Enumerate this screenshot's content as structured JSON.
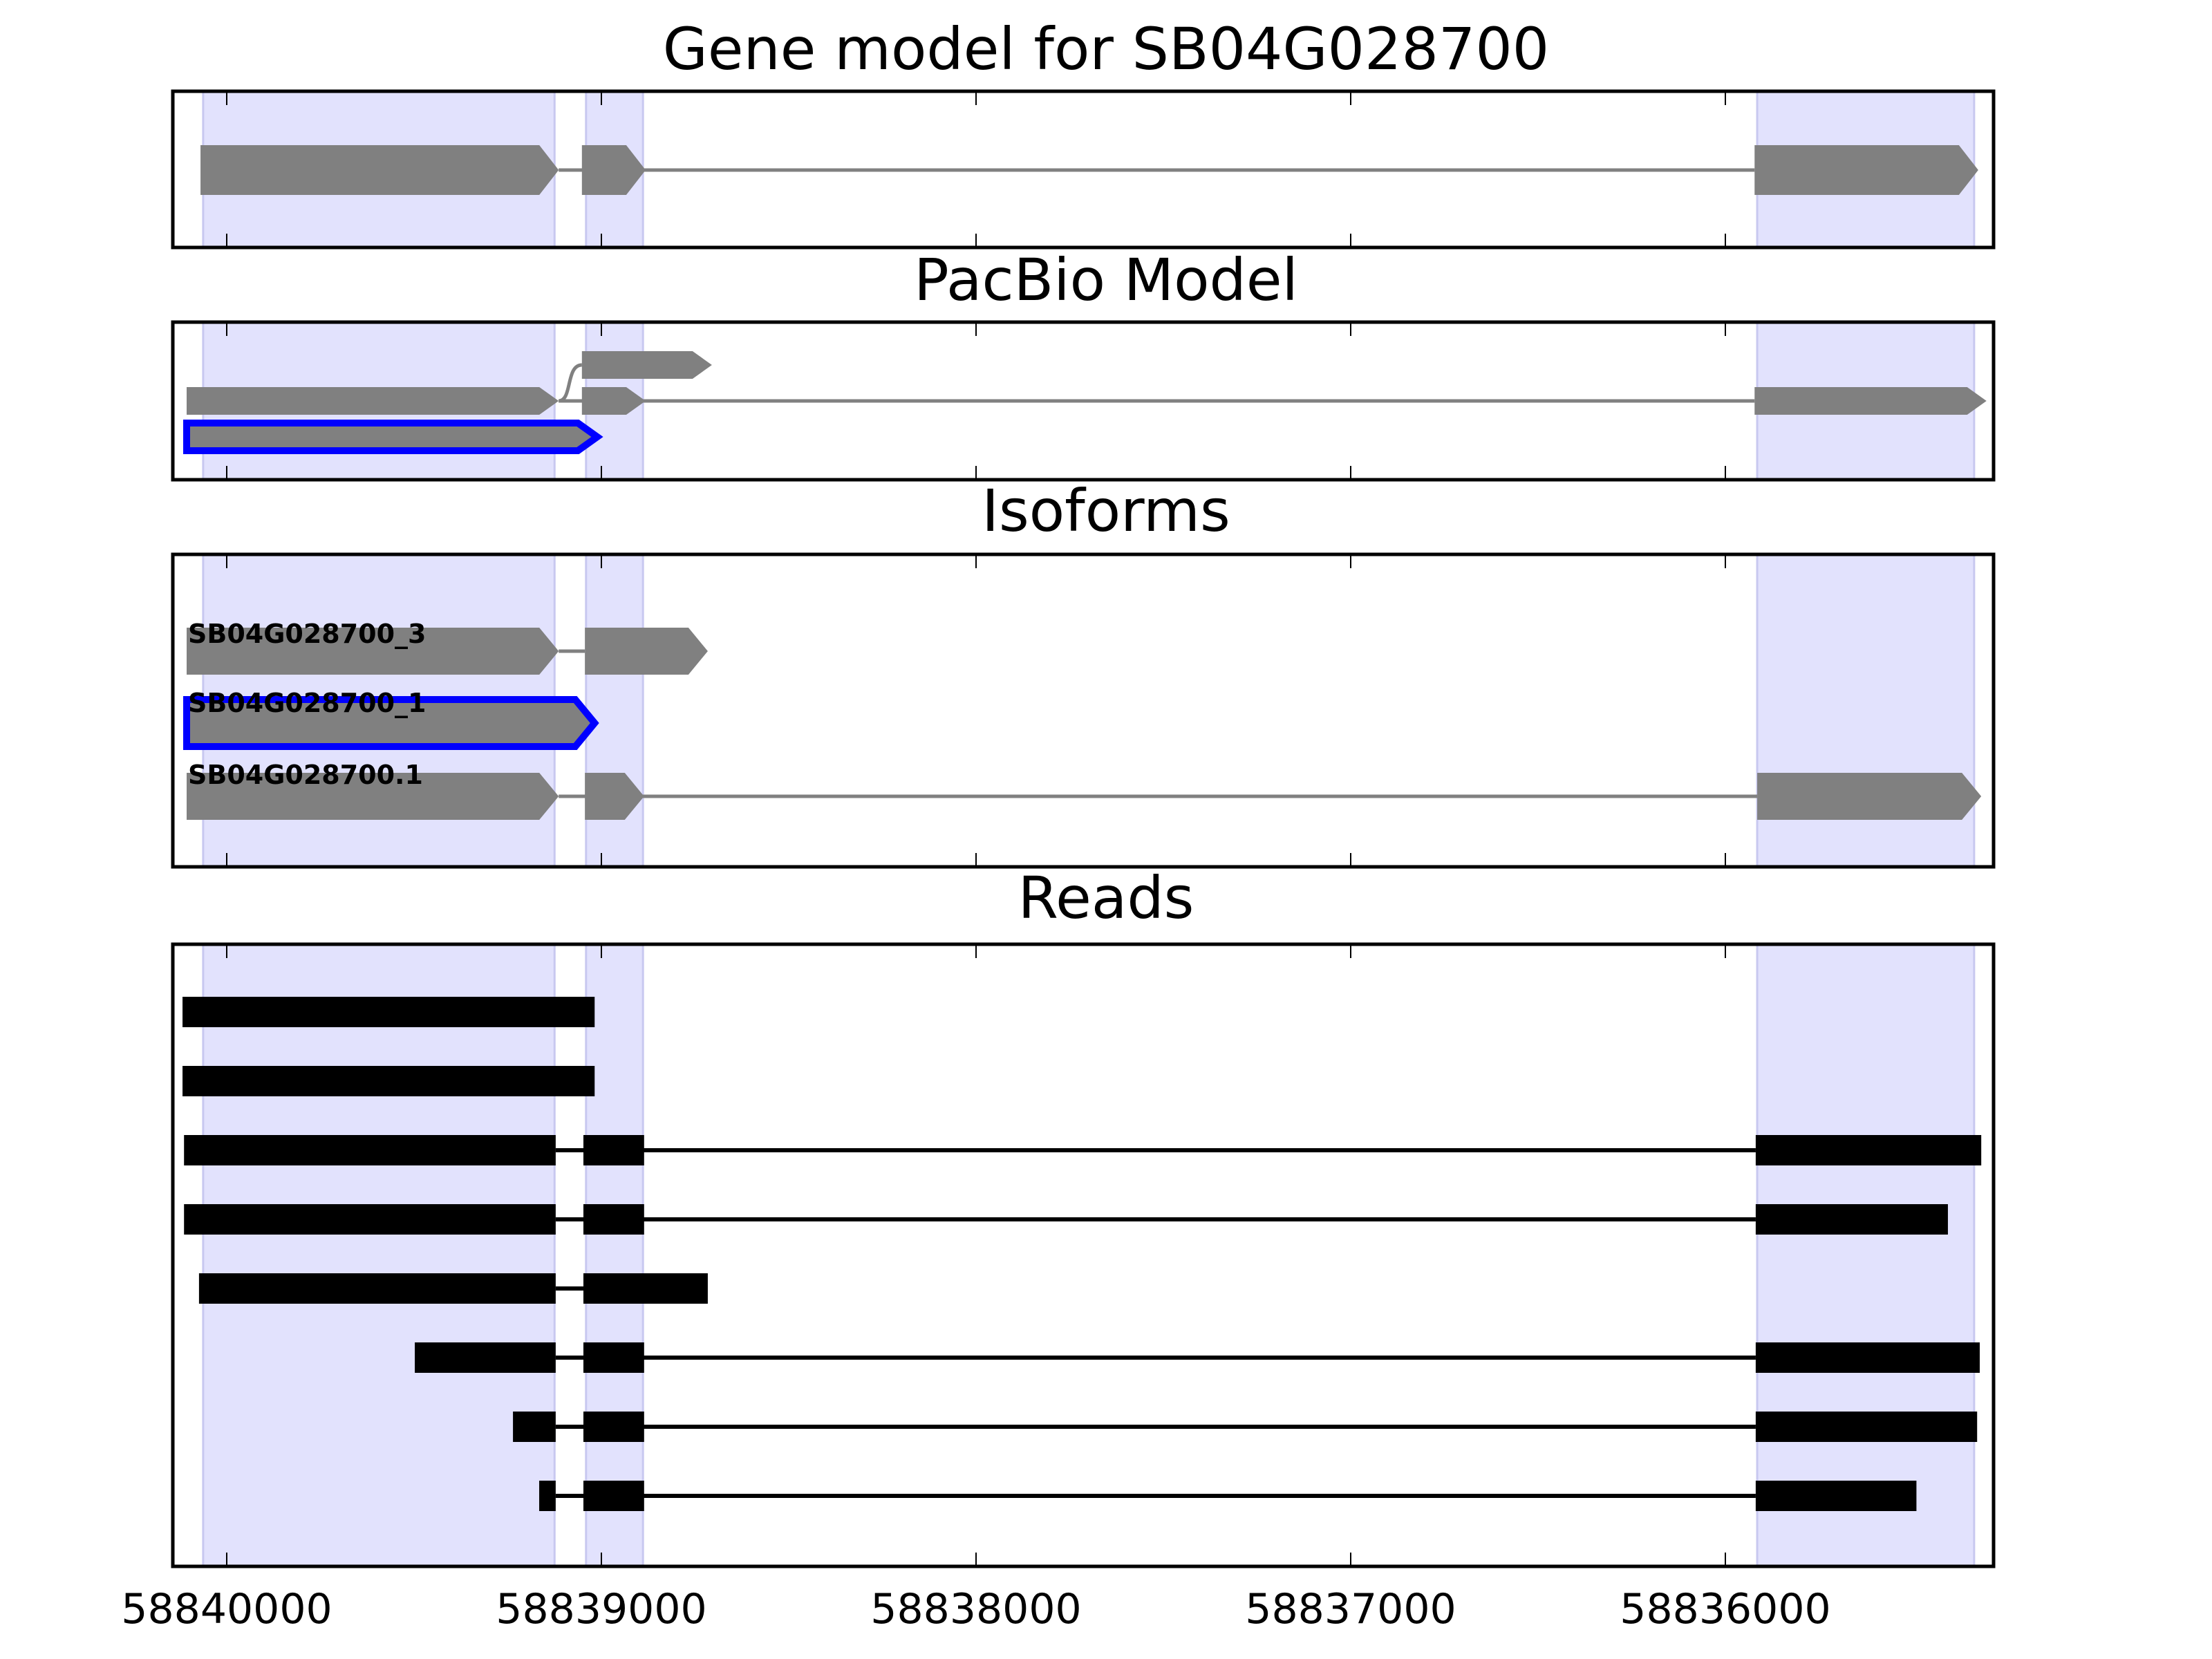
{
  "chart_data": {
    "type": "gene-track",
    "xlim": [
      58840144,
      58835284
    ],
    "x_ticks": [
      58840000,
      58839000,
      58838000,
      58837000,
      58836000
    ],
    "x_tick_labels": [
      "58840000",
      "58839000",
      "58838000",
      "58837000",
      "58836000"
    ],
    "shaded_exon_regions": [
      [
        58840063,
        58839125
      ],
      [
        58839041,
        58838889
      ],
      [
        58835915,
        58835336
      ]
    ],
    "colors": {
      "shade": "#e2e2fd",
      "exon": "#808080",
      "highlight": "#0000ff",
      "read": "#000000"
    },
    "panels": [
      {
        "title": "Gene model for SB04G028700",
        "type": "model",
        "tracks": [
          {
            "exons": [
              [
                58840070,
                58839114
              ],
              [
                58839052,
                58838882
              ],
              [
                58835922,
                58835325
              ]
            ]
          }
        ]
      },
      {
        "title": "PacBio Model",
        "type": "model",
        "tracks": [
          {
            "exons": [
              [
                58839052,
                58838705
              ]
            ],
            "spliced_from_row": 1
          },
          {
            "exons": [
              [
                58840107,
                58839114
              ],
              [
                58839052,
                58838882
              ],
              [
                58835922,
                58835303
              ]
            ]
          },
          {
            "exons": [
              [
                58840107,
                58839011
              ]
            ],
            "highlight": true
          }
        ]
      },
      {
        "title": "Isoforms",
        "type": "model",
        "tracks": [
          {
            "label": "SB04G028700_3",
            "exons": [
              [
                58840107,
                58839114
              ],
              [
                58839044,
                58838716
              ]
            ]
          },
          {
            "label": "SB04G028700_1",
            "exons": [
              [
                58840107,
                58839018
              ]
            ],
            "highlight": true
          },
          {
            "label": "SB04G028700.1",
            "exons": [
              [
                58840107,
                58839114
              ],
              [
                58839044,
                58838886
              ],
              [
                58835915,
                58835317
              ]
            ]
          }
        ]
      },
      {
        "title": "Reads",
        "type": "reads",
        "tracks": [
          {
            "exons": [
              [
                58840118,
                58839018
              ]
            ]
          },
          {
            "exons": [
              [
                58840118,
                58839018
              ]
            ]
          },
          {
            "exons": [
              [
                58840114,
                58839122
              ],
              [
                58839048,
                58838886
              ],
              [
                58835919,
                58835317
              ]
            ]
          },
          {
            "exons": [
              [
                58840114,
                58839122
              ],
              [
                58839048,
                58838886
              ],
              [
                58835919,
                58835406
              ]
            ]
          },
          {
            "exons": [
              [
                58840074,
                58839122
              ],
              [
                58839048,
                58838716
              ]
            ]
          },
          {
            "exons": [
              [
                58839498,
                58839122
              ],
              [
                58839048,
                58838886
              ],
              [
                58835919,
                58835321
              ]
            ]
          },
          {
            "exons": [
              [
                58839236,
                58839122
              ],
              [
                58839048,
                58838886
              ],
              [
                58835919,
                58835328
              ]
            ]
          },
          {
            "exons": [
              [
                58839166,
                58839122
              ],
              [
                58839048,
                58838886
              ],
              [
                58835919,
                58835490
              ]
            ]
          }
        ]
      }
    ]
  }
}
